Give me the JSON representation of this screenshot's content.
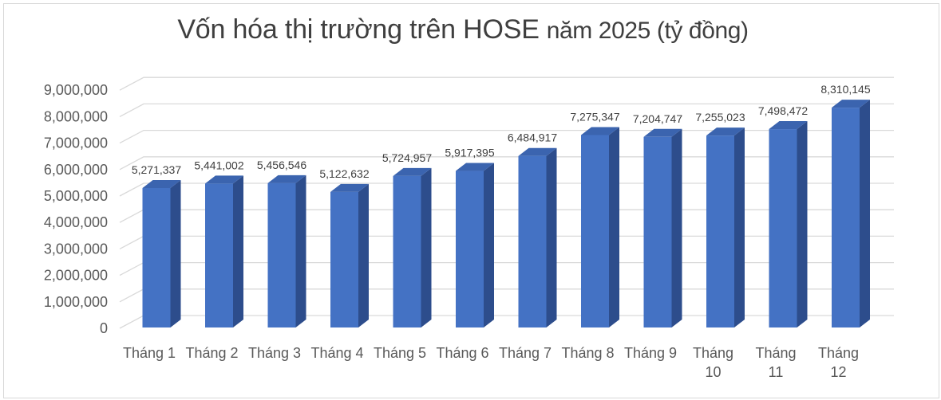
{
  "chart_data": {
    "type": "bar",
    "variant": "3d-column",
    "title": "Vốn hóa thị trường trên HOSE năm 2025 (tỷ đồng)",
    "title_main": "Vốn hóa thị trường trên HOSE",
    "title_suffix": "năm 2025 (tỷ đồng)",
    "categories": [
      "Tháng 1",
      "Tháng 2",
      "Tháng 3",
      "Tháng 4",
      "Tháng 5",
      "Tháng 6",
      "Tháng 7",
      "Tháng 8",
      "Tháng 9",
      "Tháng 10",
      "Tháng 11",
      "Tháng 12"
    ],
    "values": [
      5271337,
      5441002,
      5456546,
      5122632,
      5724957,
      5917395,
      6484917,
      7275347,
      7204747,
      7255023,
      7498472,
      8310145
    ],
    "data_labels": [
      "5,271,337",
      "5,441,002",
      "5,456,546",
      "5,122,632",
      "5,724,957",
      "5,917,395",
      "6,484,917",
      "7,275,347",
      "7,204,747",
      "7,255,023",
      "7,498,472",
      "8,310,145"
    ],
    "xlabel": "",
    "ylabel": "",
    "ylim": [
      0,
      9000000
    ],
    "ytick_step": 1000000,
    "ytick_labels": [
      "0",
      "1,000,000",
      "2,000,000",
      "3,000,000",
      "4,000,000",
      "5,000,000",
      "6,000,000",
      "7,000,000",
      "8,000,000",
      "9,000,000"
    ],
    "layout": {
      "grid": true,
      "legend": "none",
      "two_line_xticks_from_index": 9
    },
    "colors": {
      "bar_front": "#4472C4",
      "bar_top": "#3B64AF",
      "bar_side": "#2D4D8C",
      "gridline": "#D9D9D9",
      "chart_border": "#D9D9D9",
      "axis_text": "#595959",
      "label_text": "#3F3F3F",
      "title_text": "#3F3F3F"
    }
  }
}
